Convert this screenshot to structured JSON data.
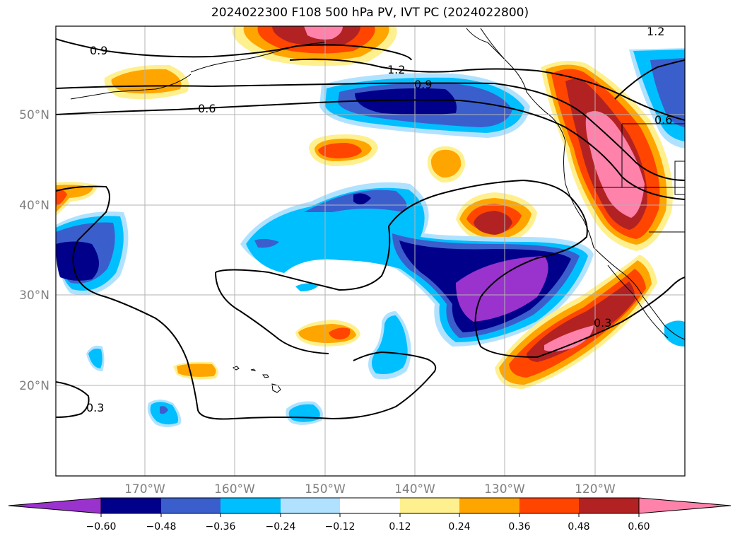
{
  "title": "2024022300 F108 500 hPa PV, IVT PC (2024022800)",
  "map": {
    "lon_ticks": [
      "170°W",
      "160°W",
      "150°W",
      "140°W",
      "130°W",
      "120°W"
    ],
    "lat_ticks": [
      "50°N",
      "40°N",
      "30°N",
      "20°N"
    ],
    "contour_labels": [
      "0.9",
      "1.2",
      "0.9",
      "0.6",
      "0.3",
      "0.3",
      "1.2",
      "0.6"
    ]
  },
  "colorbar": {
    "ticks": [
      "−0.60",
      "−0.48",
      "−0.36",
      "−0.24",
      "−0.12",
      "0.12",
      "0.24",
      "0.36",
      "0.48",
      "0.60"
    ],
    "colors": [
      "#9a32cd",
      "#00008b",
      "#3a5fcd",
      "#00bfff",
      "#b0e2ff",
      "#ffffff",
      "#fff08f",
      "#ffa500",
      "#ff4500",
      "#b22222",
      "#ff82ab"
    ]
  },
  "colors": {
    "purple": "#9a32cd",
    "navy": "#00008b",
    "royal_blue": "#3a5fcd",
    "deep_sky_blue": "#00bfff",
    "light_blue": "#b0e2ff",
    "light_yellow": "#fff08f",
    "orange": "#ffa500",
    "orange_red": "#ff4500",
    "firebrick": "#b22222",
    "pink": "#ff82ab"
  }
}
